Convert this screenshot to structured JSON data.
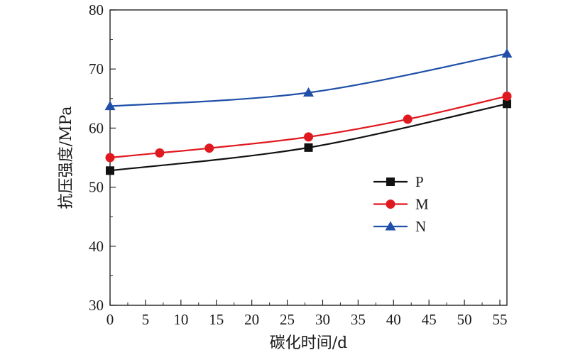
{
  "chart_data": {
    "type": "line",
    "title": "",
    "xlabel": "碳化时间/d",
    "ylabel": "抗压强度/MPa",
    "xlim": [
      0,
      56
    ],
    "ylim": [
      30,
      80
    ],
    "xticks": [
      0,
      5,
      10,
      15,
      20,
      25,
      30,
      35,
      40,
      45,
      50,
      55
    ],
    "yticks": [
      30,
      40,
      50,
      60,
      70,
      80
    ],
    "grid": false,
    "legend_position": "center-right",
    "series": [
      {
        "name": "P",
        "color": "#111111",
        "marker": "square",
        "x": [
          0,
          28,
          56
        ],
        "y": [
          52.8,
          56.7,
          64.1
        ]
      },
      {
        "name": "M",
        "color": "#e0191f",
        "marker": "circle",
        "x": [
          0,
          7,
          14,
          28,
          42,
          56
        ],
        "y": [
          55.0,
          55.8,
          56.6,
          58.5,
          61.5,
          65.4
        ]
      },
      {
        "name": "N",
        "color": "#1f4fa8",
        "marker": "triangle",
        "x": [
          0,
          28,
          56
        ],
        "y": [
          63.7,
          66.0,
          72.6
        ]
      }
    ]
  }
}
